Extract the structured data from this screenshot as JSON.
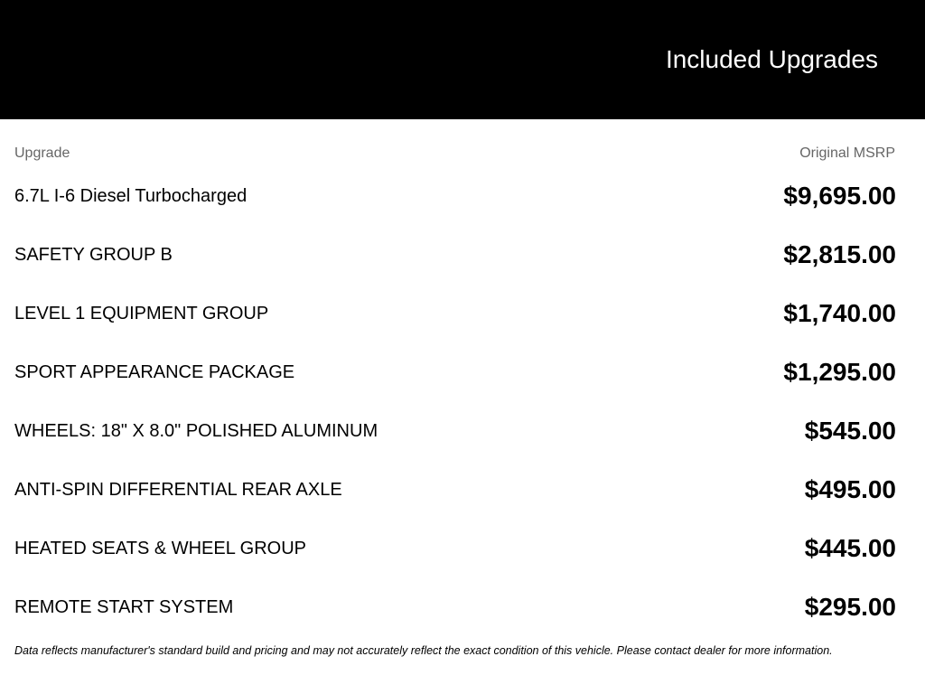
{
  "header": {
    "title": "Included Upgrades"
  },
  "table": {
    "columns": [
      "Upgrade",
      "Original MSRP"
    ],
    "rows": [
      {
        "name": "6.7L I-6 Diesel Turbocharged",
        "price": "$9,695.00"
      },
      {
        "name": "SAFETY GROUP B",
        "price": "$2,815.00"
      },
      {
        "name": "LEVEL 1 EQUIPMENT GROUP",
        "price": "$1,740.00"
      },
      {
        "name": "SPORT APPEARANCE PACKAGE",
        "price": "$1,295.00"
      },
      {
        "name": "WHEELS: 18\" X 8.0\" POLISHED ALUMINUM",
        "price": "$545.00"
      },
      {
        "name": "ANTI-SPIN DIFFERENTIAL REAR AXLE",
        "price": "$495.00"
      },
      {
        "name": "HEATED SEATS & WHEEL GROUP",
        "price": "$445.00"
      },
      {
        "name": "REMOTE START SYSTEM",
        "price": "$295.00"
      }
    ]
  },
  "footnote": "Data reflects manufacturer's standard build and pricing and may not accurately reflect the exact condition of this vehicle. Please contact dealer for more information."
}
